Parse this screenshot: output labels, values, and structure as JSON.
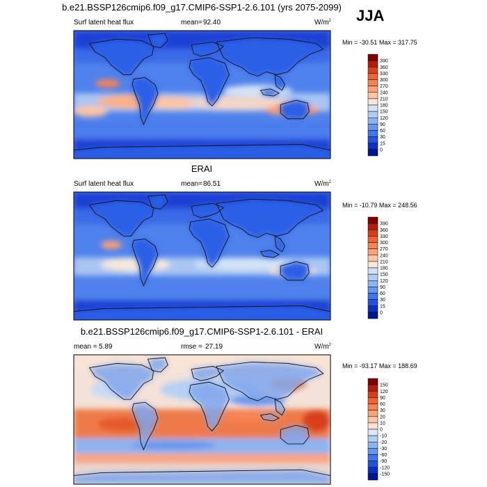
{
  "season": "JJA",
  "chart_data": [
    {
      "type": "heatmap",
      "title": "b.e21.BSSP126cmip6.f09_g17.CMIP6-SSP1-2.6.101 (yrs 2075-2099)",
      "left_label": "Surf latent heat flux",
      "mean_label": "mean=",
      "mean_value": "92.40",
      "units": "W/m",
      "units_sup": "2",
      "min_label": "Min =",
      "min_value": "-30.51",
      "max_label": "Max =",
      "max_value": "317.75",
      "colorbar_ticks": [
        "390",
        "360",
        "330",
        "300",
        "270",
        "240",
        "210",
        "180",
        "150",
        "120",
        "90",
        "60",
        "30",
        "15",
        "0"
      ]
    },
    {
      "type": "heatmap",
      "title": "ERAI",
      "left_label": "Surf latent heat flux",
      "mean_label": "mean=",
      "mean_value": "86.51",
      "units": "W/m",
      "units_sup": "2",
      "min_label": "Min =",
      "min_value": "-10.79",
      "max_label": "Max =",
      "max_value": "248.56",
      "colorbar_ticks": [
        "390",
        "360",
        "330",
        "300",
        "270",
        "240",
        "210",
        "180",
        "150",
        "120",
        "90",
        "60",
        "30",
        "15",
        "0"
      ]
    },
    {
      "type": "heatmap",
      "title": "b.e21.BSSP126cmip6.f09_g17.CMIP6-SSP1-2.6.101 - ERAI",
      "left_label": "mean =",
      "left_value": "5.89",
      "rmse_label": "rmse =",
      "rmse_value": "27.19",
      "units": "W/m",
      "units_sup": "2",
      "min_label": "Min =",
      "min_value": "-93.17",
      "max_label": "Max =",
      "max_value": "188.69",
      "colorbar_ticks": [
        "150",
        "120",
        "90",
        "60",
        "30",
        "20",
        "10",
        "0",
        "-10",
        "-20",
        "-30",
        "-60",
        "-90",
        "-120",
        "-150"
      ]
    }
  ],
  "colors": {
    "abs_scale": [
      "#800000",
      "#b01e0e",
      "#d8401a",
      "#ee6432",
      "#f68452",
      "#f9a37b",
      "#fbc5a6",
      "#f6e8dc",
      "#d3e3f7",
      "#b1cdf4",
      "#8db3f0",
      "#6896ee",
      "#4375ea",
      "#2452de",
      "#0e2fbe",
      "#001790"
    ],
    "diff_scale": [
      "#800000",
      "#b01e0e",
      "#d8401a",
      "#ee6432",
      "#f68452",
      "#f9a37b",
      "#fbc5a6",
      "#fbe4d4",
      "#dce8f8",
      "#b1cdf4",
      "#8db3f0",
      "#6896ee",
      "#4375ea",
      "#2452de",
      "#0e2fbe",
      "#001790"
    ]
  }
}
